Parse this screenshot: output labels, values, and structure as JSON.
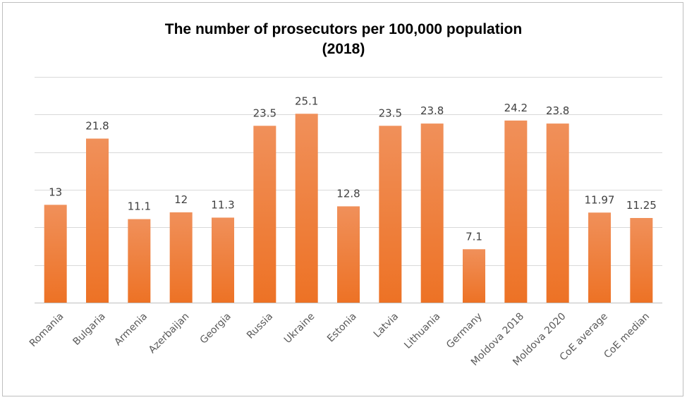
{
  "chart_data": {
    "type": "bar",
    "title_line1": "The number of prosecutors per 100,000 population",
    "title_line2": "(2018)",
    "categories": [
      "Romania",
      "Bulgaria",
      "Armenia",
      "Azerbaijan",
      "Georgia",
      "Russia",
      "Ukraine",
      "Estonia",
      "Latvia",
      "Lithuania",
      "Germany",
      "Moldova 2018",
      "Moldova 2020",
      "CoE average",
      "CoE median"
    ],
    "values": [
      13,
      21.8,
      11.1,
      12,
      11.3,
      23.5,
      25.1,
      12.8,
      23.5,
      23.8,
      7.1,
      24.2,
      23.8,
      11.97,
      11.25
    ],
    "value_labels": [
      "13",
      "21.8",
      "11.1",
      "12",
      "11.3",
      "23.5",
      "25.1",
      "12.8",
      "23.5",
      "23.8",
      "7.1",
      "24.2",
      "23.8",
      "11.97",
      "11.25"
    ],
    "ylim": [
      0,
      30
    ],
    "y_gridlines": [
      0,
      5,
      10,
      15,
      20,
      25,
      30
    ],
    "grid": true,
    "legend": "none",
    "bar_color_top": "#f0905a",
    "bar_color_bottom": "#ed7225"
  }
}
